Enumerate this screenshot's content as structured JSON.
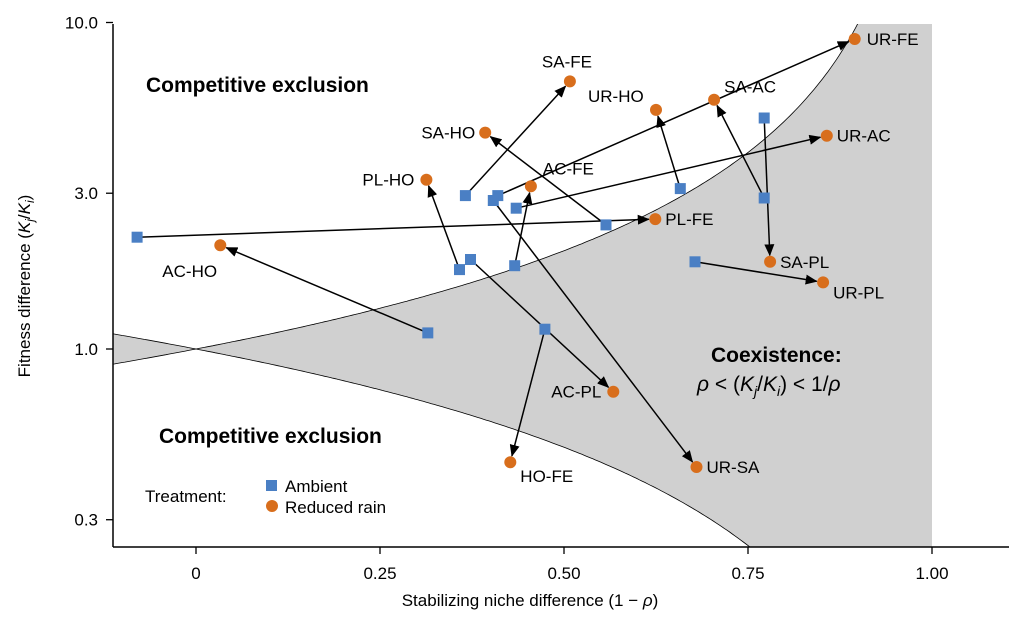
{
  "chart_data": {
    "type": "scatter",
    "x_axis": {
      "label_prefix": "Stabilizing niche difference (1 − ",
      "label_symbol": "ρ",
      "label_suffix": ")",
      "ticks": [
        0,
        0.25,
        0.5,
        0.75,
        1.0
      ],
      "tick_labels": [
        "0",
        "0.25",
        "0.50",
        "0.75",
        "1.00"
      ],
      "range": [
        -0.115,
        1.1
      ]
    },
    "y_axis": {
      "label_prefix": "Fitness difference (",
      "label_k": "K",
      "label_j": "j",
      "label_slash": "/",
      "label_i": "i",
      "label_suffix": ")",
      "scale": "log",
      "ticks": [
        0.3,
        1.0,
        3.0,
        10.0
      ],
      "tick_labels": [
        "0.3",
        "1.0",
        "3.0",
        "10.0"
      ],
      "range": [
        0.265,
        10.0
      ]
    },
    "regions": {
      "exclusion_top": "Competitive exclusion",
      "exclusion_bottom": "Competitive exclusion",
      "coexistence_title": "Coexistence:",
      "coexistence_formula": {
        "rho1": "ρ",
        "lt1": " < (",
        "k1": "K",
        "sub_j": "j",
        "slash": "/",
        "k2": "K",
        "sub_i": "i",
        "lt2": ") < 1/",
        "rho2": "ρ"
      },
      "shade_color": "#d0d0d0"
    },
    "legend": {
      "title": "Treatment:",
      "placement": "bottom-left",
      "items": [
        {
          "label": "Ambient",
          "marker": "square",
          "color": "#4a7fc4"
        },
        {
          "label": "Reduced rain",
          "marker": "circle",
          "color": "#d86e1c"
        }
      ]
    },
    "series": [
      {
        "name": "Ambient",
        "marker": "square",
        "color": "#4a7fc4"
      },
      {
        "name": "Reduced rain",
        "marker": "circle",
        "color": "#d86e1c"
      }
    ],
    "pairs": [
      {
        "label": "UR-FE",
        "ambient": [
          0.41,
          2.95
        ],
        "reduced": [
          0.895,
          8.9
        ]
      },
      {
        "label": "SA-FE",
        "ambient": [
          0.366,
          2.95
        ],
        "reduced": [
          0.508,
          6.6
        ]
      },
      {
        "label": "UR-HO",
        "ambient": [
          0.658,
          3.1
        ],
        "reduced": [
          0.625,
          5.4
        ]
      },
      {
        "label": "SA-AC",
        "ambient": [
          0.772,
          2.9
        ],
        "reduced": [
          0.704,
          5.8
        ]
      },
      {
        "label": "SA-HO",
        "ambient": [
          0.557,
          2.4
        ],
        "reduced": [
          0.393,
          4.6
        ]
      },
      {
        "label": "UR-AC",
        "ambient": [
          0.435,
          2.7
        ],
        "reduced": [
          0.857,
          4.5
        ]
      },
      {
        "label": "PL-HO",
        "ambient": [
          0.358,
          1.75
        ],
        "reduced": [
          0.313,
          3.3
        ]
      },
      {
        "label": "AC-FE",
        "ambient": [
          0.433,
          1.8
        ],
        "reduced": [
          0.455,
          3.15
        ]
      },
      {
        "label": "PL-FE",
        "ambient": [
          -0.08,
          2.2
        ],
        "reduced": [
          0.624,
          2.5
        ]
      },
      {
        "label": "AC-HO",
        "ambient": [
          0.315,
          1.12
        ],
        "reduced": [
          0.033,
          2.08
        ]
      },
      {
        "label": "SA-PL",
        "ambient": [
          0.772,
          5.1
        ],
        "reduced": [
          0.78,
          1.85
        ]
      },
      {
        "label": "UR-PL",
        "ambient": [
          0.678,
          1.85
        ],
        "reduced": [
          0.852,
          1.6
        ]
      },
      {
        "label": "AC-PL",
        "ambient": [
          0.373,
          1.88
        ],
        "reduced": [
          0.567,
          0.74
        ]
      },
      {
        "label": "HO-FE",
        "ambient": [
          0.474,
          1.15
        ],
        "reduced": [
          0.427,
          0.45
        ]
      },
      {
        "label": "UR-SA",
        "ambient": [
          0.404,
          2.85
        ],
        "reduced": [
          0.68,
          0.435
        ]
      }
    ]
  }
}
